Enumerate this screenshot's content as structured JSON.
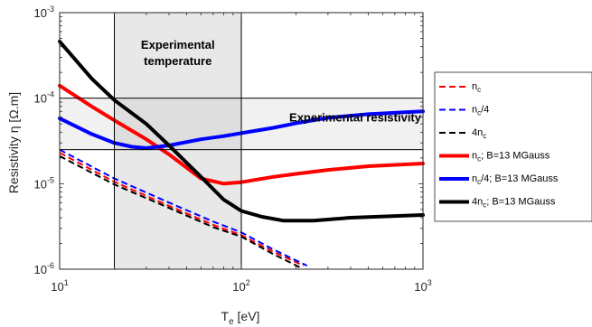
{
  "chart_data": {
    "type": "line",
    "xlabel": "T",
    "xlabel_sub": "e",
    "xlabel_unit": " [eV]",
    "ylabel": "Resistivity η [Ω.m]",
    "x_scale": "log",
    "y_scale": "log",
    "xlim": [
      10,
      1000
    ],
    "ylim": [
      1e-06,
      0.001
    ],
    "x_ticks": [
      {
        "base": "10",
        "exp": "1",
        "value": 10
      },
      {
        "base": "10",
        "exp": "2",
        "value": 100
      },
      {
        "base": "10",
        "exp": "3",
        "value": 1000
      }
    ],
    "y_ticks": [
      {
        "base": "10",
        "exp": "-6",
        "value": 1e-06
      },
      {
        "base": "10",
        "exp": "-5",
        "value": 1e-05
      },
      {
        "base": "10",
        "exp": "-4",
        "value": 0.0001
      },
      {
        "base": "10",
        "exp": "-3",
        "value": 0.001
      }
    ],
    "shaded_regions": [
      {
        "label": "Experimental temperature",
        "label_lines": [
          "Experimental",
          "temperature"
        ],
        "x_range": [
          20,
          100
        ],
        "y_range": [
          1e-06,
          0.001
        ]
      },
      {
        "label": "Experimental resistivity",
        "x_range": [
          10,
          1000
        ],
        "y_range": [
          2.5e-05,
          0.0001
        ]
      }
    ],
    "series": [
      {
        "name": "n_c",
        "legend_main": "n",
        "legend_sub": "c",
        "legend_rest": "",
        "color": "#ff0000",
        "style": "dashed",
        "x": [
          10,
          20,
          40,
          70,
          100,
          150,
          220
        ],
        "y": [
          2.3e-05,
          1.05e-05,
          5.5e-06,
          3.3e-06,
          2.5e-06,
          1.6e-06,
          1.1e-06
        ]
      },
      {
        "name": "n_c/4",
        "legend_main": "n",
        "legend_sub": "c",
        "legend_rest": "/4",
        "color": "#0000ff",
        "style": "dashed",
        "x": [
          10,
          20,
          40,
          70,
          100,
          150,
          230
        ],
        "y": [
          2.5e-05,
          1.15e-05,
          6e-06,
          3.6e-06,
          2.7e-06,
          1.7e-06,
          1.1e-06
        ]
      },
      {
        "name": "4n_c",
        "legend_main": "4n",
        "legend_sub": "c",
        "legend_rest": "",
        "color": "#000000",
        "style": "dashed",
        "x": [
          10,
          20,
          40,
          70,
          100,
          150,
          210
        ],
        "y": [
          2.1e-05,
          9.8e-06,
          5.2e-06,
          3.1e-06,
          2.4e-06,
          1.5e-06,
          1.05e-06
        ]
      },
      {
        "name": "n_c; B=13 MGauss",
        "legend_main": "n",
        "legend_sub": "c",
        "legend_rest": "; B=13 MGauss",
        "color": "#ff0000",
        "style": "solid",
        "x": [
          10,
          15,
          20,
          30,
          40,
          60,
          80,
          100,
          150,
          200,
          300,
          500,
          1000
        ],
        "y": [
          0.00014,
          8e-05,
          5.5e-05,
          3.3e-05,
          2.2e-05,
          1.15e-05,
          1e-05,
          1.04e-05,
          1.2e-05,
          1.3e-05,
          1.45e-05,
          1.6e-05,
          1.72e-05
        ]
      },
      {
        "name": "n_c/4; B=13 MGauss",
        "legend_main": "n",
        "legend_sub": "c",
        "legend_rest": "/4; B=13 MGauss",
        "color": "#0000ff",
        "style": "solid",
        "x": [
          10,
          15,
          20,
          25,
          30,
          40,
          60,
          80,
          100,
          150,
          200,
          300,
          500,
          1000
        ],
        "y": [
          5.8e-05,
          3.8e-05,
          3e-05,
          2.7e-05,
          2.6e-05,
          2.8e-05,
          3.3e-05,
          3.6e-05,
          3.9e-05,
          4.5e-05,
          5.1e-05,
          5.9e-05,
          6.5e-05,
          7e-05
        ]
      },
      {
        "name": "4n_c; B=13 MGauss",
        "legend_main": "4n",
        "legend_sub": "c",
        "legend_rest": "; B=13 MGauss",
        "color": "#000000",
        "style": "solid",
        "x": [
          10,
          15,
          20,
          30,
          40,
          60,
          80,
          100,
          130,
          170,
          250,
          400,
          1000
        ],
        "y": [
          0.00046,
          0.00017,
          9.5e-05,
          5e-05,
          2.8e-05,
          1.2e-05,
          6.5e-06,
          4.8e-06,
          4.1e-06,
          3.7e-06,
          3.7e-06,
          4e-06,
          4.3e-06
        ]
      }
    ]
  }
}
